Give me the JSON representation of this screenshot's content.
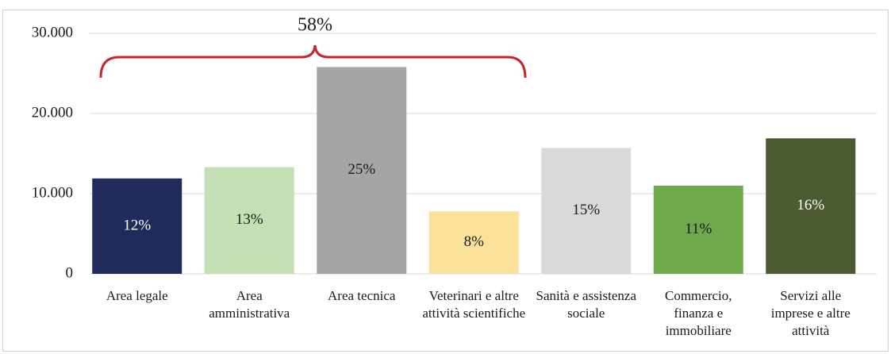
{
  "chart_data": {
    "type": "bar",
    "categories": [
      "Area legale",
      "Area amministrativa",
      "Area tecnica",
      "Veterinari e altre attività scientifiche",
      "Sanità e assistenza sociale",
      "Commercio, finanza e immobiliare",
      "Servizi alle imprese e altre attività"
    ],
    "values": [
      11900,
      13300,
      25800,
      7800,
      15700,
      11000,
      16900
    ],
    "data_labels": [
      "12%",
      "13%",
      "25%",
      "8%",
      "15%",
      "11%",
      "16%"
    ],
    "colors": [
      "#1f2c5b",
      "#c5e0b4",
      "#a5a5a8",
      "#fae199",
      "#d9d9db",
      "#70a94b",
      "#4b5a31"
    ],
    "label_colors": [
      "#ffffff",
      "#1a1a1a",
      "#1a1a1a",
      "#1a1a1a",
      "#1a1a1a",
      "#1a1a1a",
      "#ffffff"
    ],
    "ylim": [
      0,
      30000
    ],
    "yticks": [
      0,
      {
        "value": 10000,
        "label": "10.000"
      },
      {
        "value": 20000,
        "label": "20.000"
      },
      {
        "value": 30000,
        "label": "30.000"
      }
    ],
    "grid": true,
    "annotation": "58%",
    "annotation_color": "#c0282d"
  }
}
